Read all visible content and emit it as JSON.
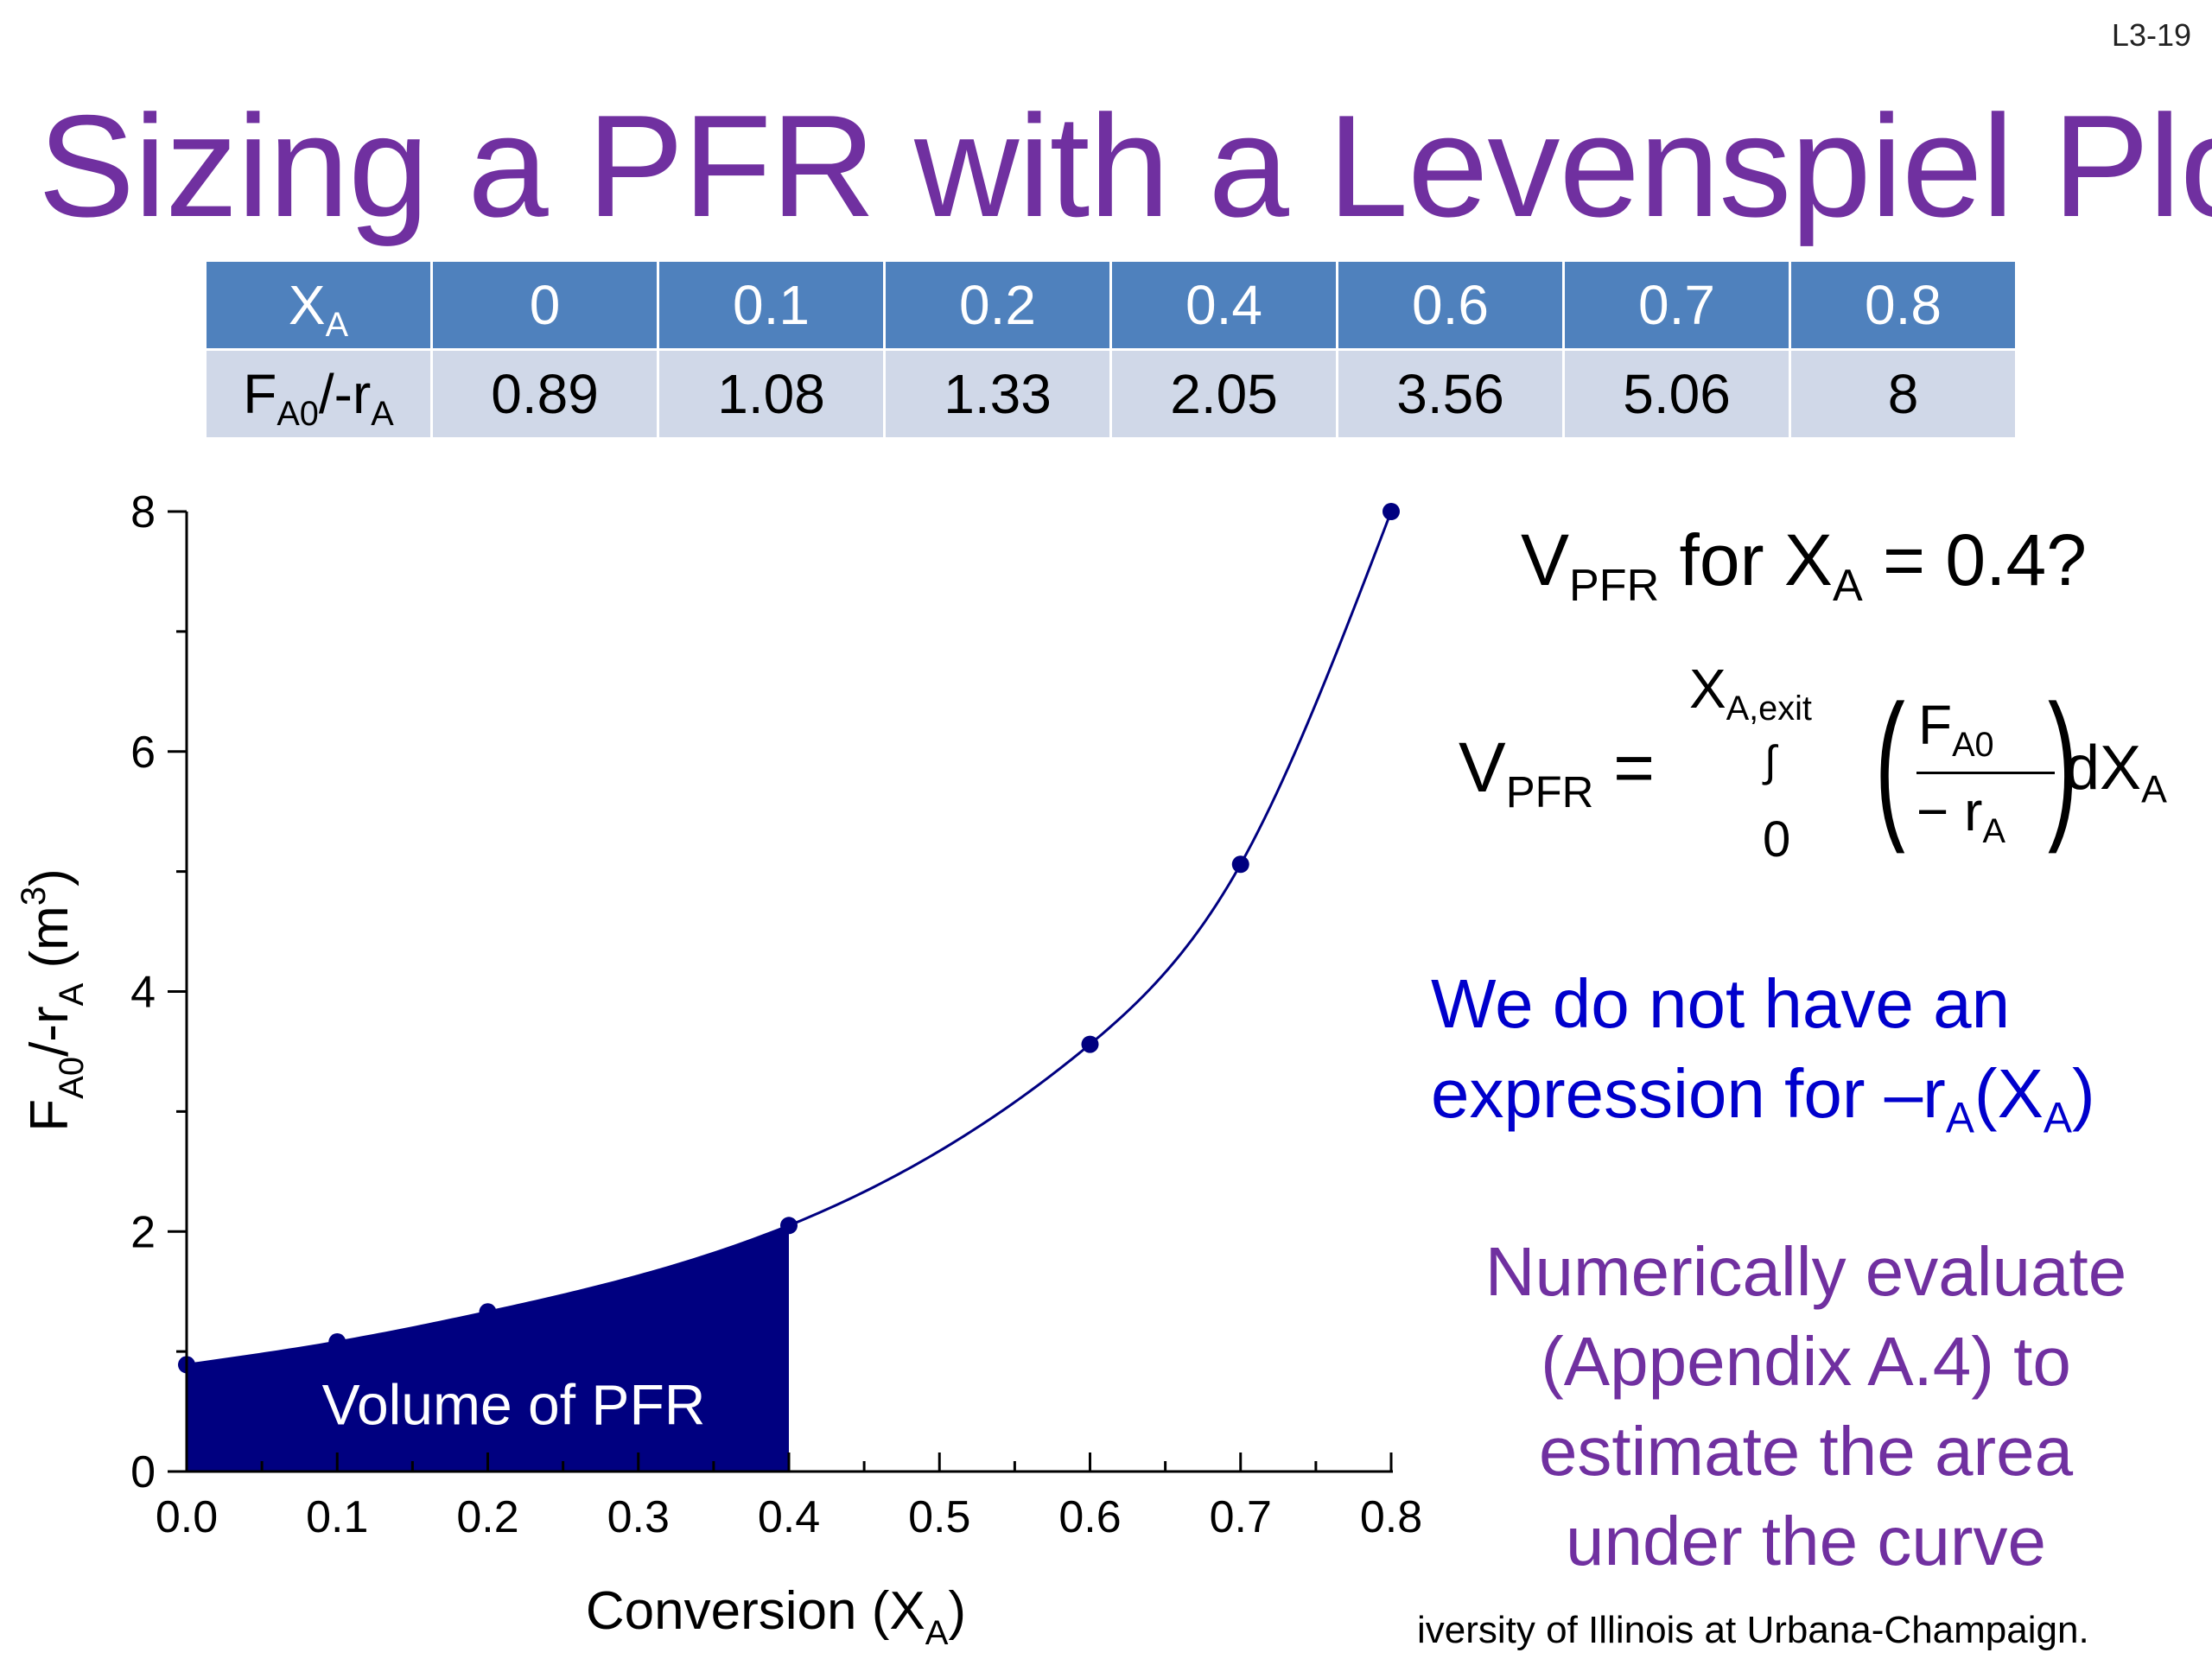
{
  "slide": {
    "number": "L3-19",
    "title": "Sizing a PFR with a Levenspiel Plot",
    "title_color": "#7030a0",
    "footer": "iversity of Illinois at Urbana-Champaign."
  },
  "table": {
    "header_color": "#4f81bd",
    "body_color": "#d0d8e8",
    "row1_label": "X",
    "row1_label_sub": "A",
    "row2_label_a": "F",
    "row2_label_sub1": "A0",
    "row2_label_b": "/-r",
    "row2_label_sub2": "A",
    "xa": [
      "0",
      "0.1",
      "0.2",
      "0.4",
      "0.6",
      "0.7",
      "0.8"
    ],
    "fa": [
      "0.89",
      "1.08",
      "1.33",
      "2.05",
      "3.56",
      "5.06",
      "8"
    ]
  },
  "chart_data": {
    "type": "line",
    "x": [
      0,
      0.1,
      0.2,
      0.4,
      0.6,
      0.7,
      0.8
    ],
    "y": [
      0.89,
      1.08,
      1.33,
      2.05,
      3.56,
      5.06,
      8
    ],
    "xlim": [
      0,
      0.8
    ],
    "ylim": [
      0,
      8
    ],
    "xticks": [
      "0.0",
      "0.1",
      "0.2",
      "0.3",
      "0.4",
      "0.5",
      "0.6",
      "0.7",
      "0.8"
    ],
    "yticks": [
      "0",
      "2",
      "4",
      "6",
      "8"
    ],
    "xlabel_main": "Conversion (X",
    "xlabel_sub": "A",
    "xlabel_end": ")",
    "ylabel_a": "F",
    "ylabel_sub1": "A0",
    "ylabel_b": "/-r",
    "ylabel_sub2": "A",
    "ylabel_c": " (m",
    "ylabel_sup": "3",
    "ylabel_d": ")",
    "shaded_upto": 0.4,
    "shaded_label": "Volume of PFR",
    "color": "#000080"
  },
  "question": {
    "v": "V",
    "v_sub": "PFR",
    "mid": " for X",
    "x_sub": "A",
    "end": " = 0.4?"
  },
  "equation": {
    "lhs": "V",
    "lhs_sub": "PFR",
    "equals": " =",
    "upper": "X",
    "upper_sub": "A,exit",
    "integral": "∫",
    "lower": "0",
    "num": "F",
    "num_sub": "A0",
    "den": "− r",
    "den_sub": "A",
    "dx": "dX",
    "dx_sub": "A"
  },
  "note1": {
    "line1": "We do not have an",
    "line2": "expression for –r",
    "sub1": "A",
    "mid": "(X",
    "sub2": "A",
    "end": ")",
    "color": "#0000cc"
  },
  "note2": {
    "lines": [
      "Numerically evaluate",
      "(Appendix A.4) to",
      "estimate the area",
      "under the curve"
    ],
    "color": "#7030a0"
  }
}
